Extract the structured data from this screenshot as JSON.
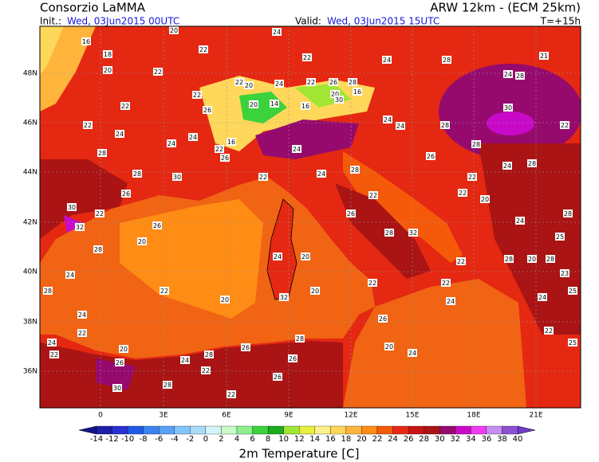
{
  "header": {
    "title": "Consorzio LaMMA",
    "model": "ARW 12km - (ECM 25km)",
    "init_label": "Init.:",
    "init": "Wed, 03Jun2015 00UTC",
    "valid_label": "Valid:",
    "valid": "Wed, 03Jun2015 15UTC",
    "lead": "T=+15h"
  },
  "map": {
    "lat_labels": [
      "48N",
      "46N",
      "44N",
      "42N",
      "40N",
      "38N",
      "36N"
    ],
    "lon_labels": [
      "0",
      "3E",
      "6E",
      "9E",
      "12E",
      "15E",
      "18E",
      "21E"
    ],
    "point_values": [
      20,
      24,
      16,
      18,
      22,
      22,
      20,
      22,
      22,
      22,
      20,
      24,
      22,
      26,
      22,
      26,
      20,
      14,
      16,
      20,
      16,
      22,
      24,
      24,
      24,
      22,
      16,
      28,
      28,
      30,
      26,
      22,
      24,
      24,
      28,
      22,
      26,
      28,
      32,
      22,
      26,
      20,
      24,
      24,
      24,
      28,
      21,
      28,
      30,
      28,
      22,
      28,
      24,
      28,
      20,
      24,
      25,
      28,
      20,
      28,
      28,
      23,
      25,
      24,
      22,
      25,
      30,
      32,
      22,
      26,
      26,
      20,
      28,
      24,
      28,
      24,
      22,
      24,
      22,
      20,
      26,
      30,
      28,
      24,
      22,
      28,
      22,
      26,
      26,
      26,
      28,
      22,
      20,
      32,
      24,
      20,
      20,
      22,
      22,
      22,
      22,
      26,
      24,
      24,
      24,
      28,
      30
    ]
  },
  "legend": {
    "title": "2m Temperature [C]",
    "ticks": [
      -14,
      -12,
      -10,
      -8,
      -6,
      -4,
      -2,
      0,
      2,
      4,
      6,
      8,
      10,
      12,
      14,
      16,
      18,
      20,
      22,
      24,
      26,
      28,
      30,
      32,
      34,
      36,
      38,
      40
    ],
    "under_color": "#14148c",
    "over_color": "#6e3cc8",
    "colors": [
      "#1e1eaa",
      "#2832d2",
      "#1e5ae6",
      "#3c82f0",
      "#5aa0f5",
      "#82c3fa",
      "#aadcfa",
      "#d2f5fa",
      "#c8fac8",
      "#8cf08c",
      "#3cd23c",
      "#1eaa1e",
      "#a0e632",
      "#e6f03c",
      "#fff08c",
      "#ffd75a",
      "#ffb43c",
      "#ff8c14",
      "#f55a0a",
      "#e62814",
      "#c81414",
      "#aa1414",
      "#960a6e",
      "#c80ac8",
      "#f03cf0",
      "#c88cf0",
      "#8c50d2"
    ]
  }
}
